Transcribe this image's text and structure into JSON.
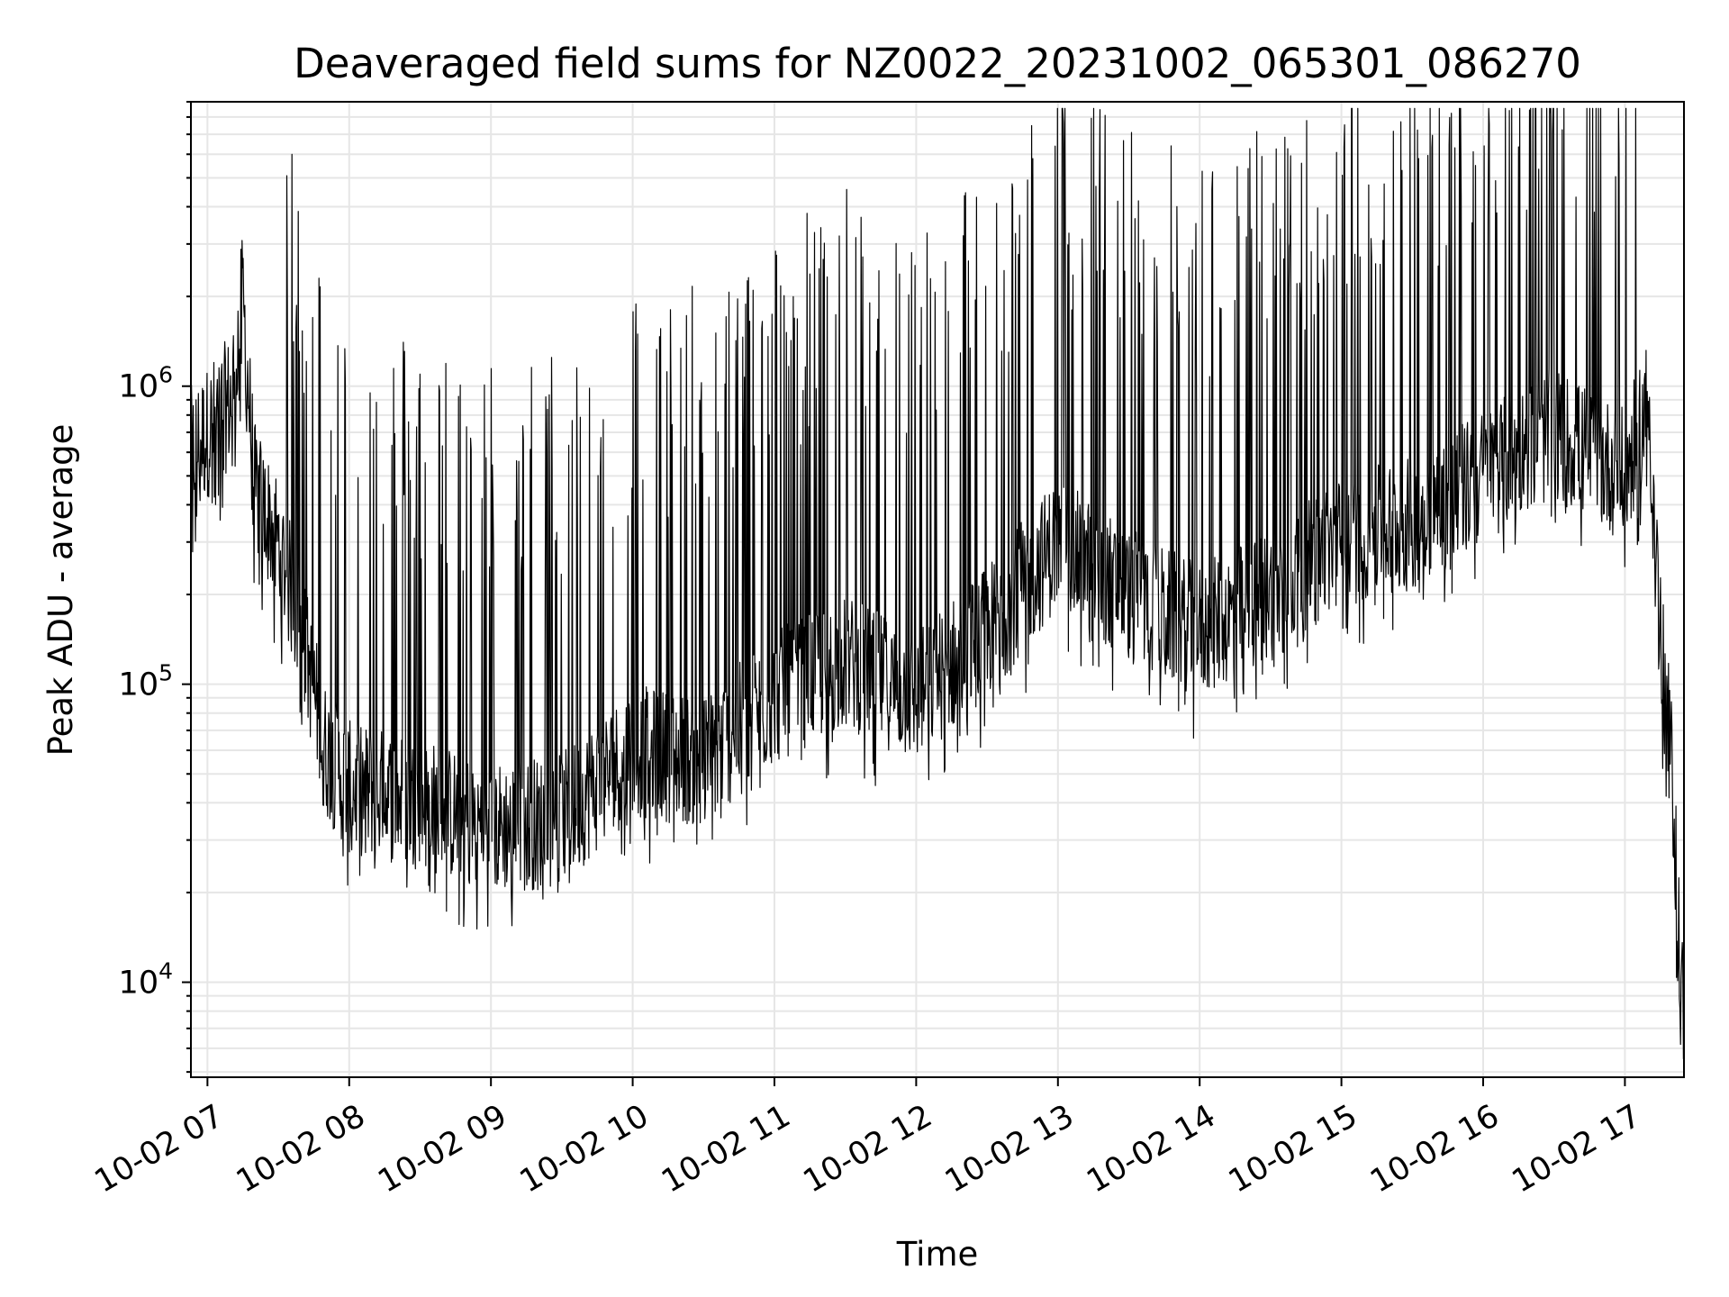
{
  "chart_data": {
    "type": "line",
    "title": "Deaveraged field sums for NZ0022_20231002_065301_086270",
    "xlabel": "Time",
    "ylabel": "Peak ADU - average",
    "yscale": "log",
    "grid": true,
    "grid_minor": true,
    "line_color": "#000000",
    "xlim": [
      "2023-10-02 06:53",
      "2023-10-02 17:25"
    ],
    "ylim": [
      4800,
      9000000
    ],
    "x_ticks": [
      "10-02 07",
      "10-02 08",
      "10-02 09",
      "10-02 10",
      "10-02 11",
      "10-02 12",
      "10-02 13",
      "10-02 14",
      "10-02 15",
      "10-02 16",
      "10-02 17"
    ],
    "y_ticks": [
      {
        "value": 10000,
        "base": "10",
        "exp": "4"
      },
      {
        "value": 100000,
        "base": "10",
        "exp": "5"
      },
      {
        "value": 1000000,
        "base": "10",
        "exp": "6"
      }
    ],
    "series": [
      {
        "points": [
          [
            "2023-10-02 06:53",
            600000
          ],
          [
            "2023-10-02 07:00",
            700000
          ],
          [
            "2023-10-02 07:10",
            900000
          ],
          [
            "2023-10-02 07:15",
            2000000
          ],
          [
            "2023-10-02 07:18",
            800000
          ],
          [
            "2023-10-02 07:20",
            450000
          ],
          [
            "2023-10-02 07:30",
            300000
          ],
          [
            "2023-10-02 07:40",
            150000
          ],
          [
            "2023-10-02 07:50",
            60000
          ],
          [
            "2023-10-02 08:00",
            45000
          ],
          [
            "2023-10-02 08:30",
            40000
          ],
          [
            "2023-10-02 09:00",
            33000
          ],
          [
            "2023-10-02 09:30",
            35000
          ],
          [
            "2023-10-02 10:00",
            60000
          ],
          [
            "2023-10-02 10:30",
            55000
          ],
          [
            "2023-10-02 11:00",
            90000
          ],
          [
            "2023-10-02 11:30",
            120000
          ],
          [
            "2023-10-02 12:00",
            90000
          ],
          [
            "2023-10-02 12:30",
            150000
          ],
          [
            "2023-10-02 13:00",
            300000
          ],
          [
            "2023-10-02 13:30",
            200000
          ],
          [
            "2023-10-02 14:00",
            150000
          ],
          [
            "2023-10-02 14:30",
            200000
          ],
          [
            "2023-10-02 15:00",
            300000
          ],
          [
            "2023-10-02 15:30",
            350000
          ],
          [
            "2023-10-02 16:00",
            500000
          ],
          [
            "2023-10-02 16:30",
            700000
          ],
          [
            "2023-10-02 17:00",
            500000
          ],
          [
            "2023-10-02 17:10",
            900000
          ],
          [
            "2023-10-02 17:15",
            150000
          ],
          [
            "2023-10-02 17:20",
            50000
          ],
          [
            "2023-10-02 17:25",
            6500
          ]
        ]
      }
    ]
  }
}
